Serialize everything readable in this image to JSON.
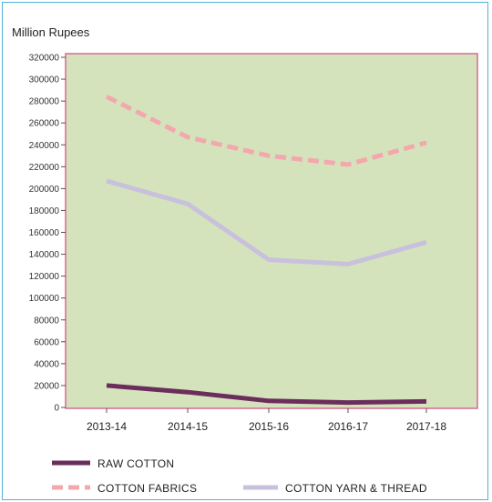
{
  "chart_data": {
    "type": "line",
    "ylabel": "Million Rupees",
    "categories": [
      "2013-14",
      "2014-15",
      "2015-16",
      "2016-17",
      "2017-18"
    ],
    "yticks": [
      0,
      20000,
      40000,
      60000,
      80000,
      100000,
      120000,
      140000,
      160000,
      180000,
      200000,
      220000,
      240000,
      260000,
      280000,
      300000,
      320000
    ],
    "ylim": [
      0,
      320000
    ],
    "grid": false,
    "legend_position": "bottom",
    "plot_background": "#d5e3bd",
    "plot_border": "#d86a8f",
    "series": [
      {
        "name": "RAW COTTON",
        "values": [
          20000,
          14000,
          6000,
          4500,
          5500
        ],
        "color": "#6b2d5c",
        "style": "solid"
      },
      {
        "name": "COTTON FABRICS",
        "values": [
          284000,
          247000,
          230000,
          222000,
          242000
        ],
        "color": "#f2a8ad",
        "style": "dashed"
      },
      {
        "name": "COTTON YARN & THREAD",
        "values": [
          207000,
          186000,
          135000,
          131000,
          151000
        ],
        "color": "#c8c0dc",
        "style": "solid"
      }
    ]
  }
}
